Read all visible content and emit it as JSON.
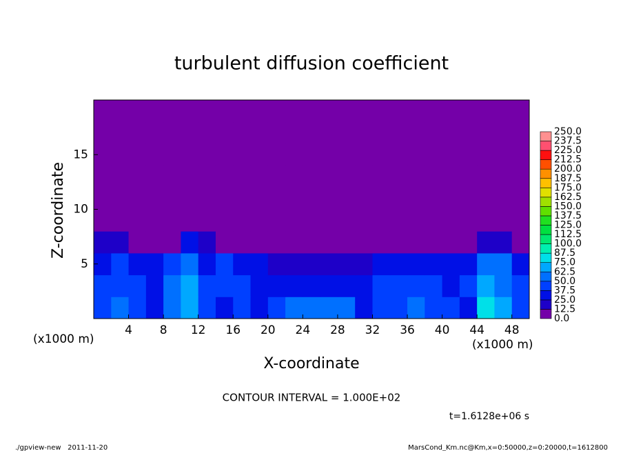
{
  "chart_data": {
    "type": "contour",
    "title": "turbulent diffusion coefficient",
    "xlabel": "X-coordinate",
    "ylabel": "Z-coordinate",
    "x_unit_label": "(x1000 m)",
    "y_unit_label": "(x1000 m)",
    "contour_note": "CONTOUR INTERVAL = 1.000E+02",
    "time_label": "t=1.6128e+06 s",
    "footer_left": "./gpview-new   2011-11-20",
    "footer_right": "MarsCond_Km.nc@Km,x=0:50000,z=0:20000,t=1612800",
    "xlim": [
      0,
      50
    ],
    "ylim": [
      0,
      20
    ],
    "xticks": [
      4,
      8,
      12,
      16,
      20,
      24,
      28,
      32,
      36,
      40,
      44,
      48
    ],
    "yticks": [
      5,
      10,
      15
    ],
    "x": [
      1,
      3,
      5,
      7,
      9,
      11,
      13,
      15,
      17,
      19,
      21,
      23,
      25,
      27,
      29,
      31,
      33,
      35,
      37,
      39,
      41,
      43,
      45,
      47,
      49
    ],
    "y": [
      1,
      3,
      5,
      7,
      9,
      11,
      13,
      15,
      17,
      19
    ],
    "z": [
      [
        40,
        60,
        45,
        35,
        55,
        70,
        40,
        35,
        40,
        30,
        40,
        50,
        55,
        60,
        50,
        35,
        40,
        45,
        50,
        45,
        40,
        35,
        75,
        70,
        45
      ],
      [
        40,
        45,
        40,
        30,
        50,
        65,
        45,
        40,
        40,
        35,
        35,
        30,
        30,
        30,
        30,
        35,
        40,
        45,
        45,
        40,
        35,
        40,
        70,
        60,
        40
      ],
      [
        35,
        40,
        30,
        25,
        45,
        50,
        35,
        40,
        35,
        25,
        20,
        20,
        15,
        15,
        15,
        20,
        30,
        35,
        35,
        30,
        30,
        30,
        50,
        55,
        30
      ],
      [
        20,
        15,
        10,
        5,
        10,
        25,
        15,
        10,
        5,
        5,
        5,
        5,
        2,
        2,
        2,
        2,
        5,
        5,
        10,
        10,
        10,
        5,
        15,
        20,
        10
      ],
      [
        2,
        0,
        0,
        0,
        0,
        0,
        0,
        0,
        0,
        0,
        0,
        0,
        0,
        0,
        0,
        0,
        0,
        0,
        0,
        0,
        0,
        0,
        2,
        0,
        0
      ],
      [
        0,
        0,
        0,
        0,
        0,
        0,
        0,
        0,
        0,
        0,
        0,
        0,
        0,
        0,
        0,
        0,
        0,
        0,
        0,
        0,
        0,
        0,
        0,
        0,
        0
      ],
      [
        0,
        0,
        0,
        0,
        0,
        0,
        0,
        0,
        0,
        0,
        0,
        0,
        0,
        0,
        0,
        0,
        0,
        0,
        0,
        0,
        0,
        0,
        0,
        0,
        0
      ],
      [
        0,
        0,
        0,
        0,
        0,
        0,
        0,
        0,
        0,
        0,
        0,
        0,
        0,
        0,
        0,
        0,
        0,
        0,
        0,
        0,
        0,
        0,
        0,
        0,
        0
      ],
      [
        0,
        0,
        0,
        0,
        0,
        0,
        0,
        0,
        0,
        0,
        0,
        0,
        0,
        0,
        0,
        0,
        0,
        0,
        0,
        0,
        0,
        0,
        0,
        0,
        0
      ],
      [
        0,
        0,
        0,
        0,
        0,
        0,
        0,
        0,
        0,
        0,
        0,
        0,
        0,
        0,
        0,
        0,
        0,
        0,
        0,
        0,
        0,
        0,
        0,
        0,
        0
      ]
    ],
    "levels": [
      {
        "value": 0,
        "label": "0.0"
      },
      12.5,
      {
        "value": 25,
        "label": "25.0"
      },
      37.5,
      {
        "value": 50,
        "label": "50.0"
      },
      62.5,
      {
        "value": 75,
        "label": "75.0"
      },
      87.5,
      {
        "value": 100,
        "label": "100.0"
      },
      112.5,
      {
        "value": 125,
        "label": "125.0"
      },
      137.5,
      {
        "value": 150,
        "label": "150.0"
      },
      162.5,
      {
        "value": 175,
        "label": "175.0"
      },
      187.5,
      {
        "value": 200,
        "label": "200.0"
      },
      212.5,
      {
        "value": 225,
        "label": "225.0"
      },
      237.5,
      {
        "value": 250,
        "label": "250.0"
      }
    ],
    "colors": [
      "#7400a8",
      "#1e00c8",
      "#0010e6",
      "#0040ff",
      "#0070ff",
      "#00a8ff",
      "#00e0e8",
      "#00f0b0",
      "#00e870",
      "#00e040",
      "#20e020",
      "#60e000",
      "#a0e000",
      "#e0e000",
      "#ffc000",
      "#ff9000",
      "#ff5000",
      "#ff1010",
      "#ff5070",
      "#ff9090"
    ]
  }
}
